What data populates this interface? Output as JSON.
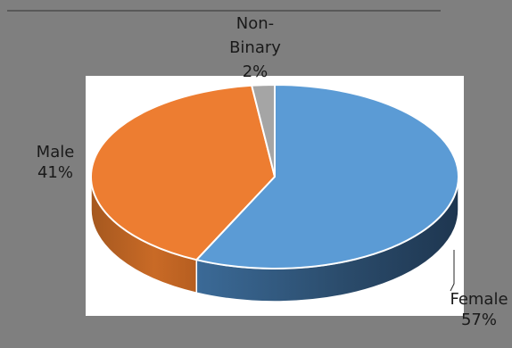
{
  "chart_data": {
    "type": "pie",
    "title": "",
    "categories": [
      "Female",
      "Male",
      "Non-Binary"
    ],
    "values": [
      57,
      41,
      2
    ],
    "value_labels": [
      "57%",
      "41%",
      "2%"
    ],
    "label_lines": [
      [
        "Female",
        "57%"
      ],
      [
        "Male",
        "41%"
      ],
      [
        "Non-",
        "Binary",
        "2%"
      ]
    ],
    "colors": {
      "Female": "#5B9BD5",
      "Male": "#ED7D31",
      "Non-Binary": "#A5A5A5",
      "frame": "#7F7F7F",
      "plot_area": "#FFFFFF"
    },
    "style": "3d-pie",
    "legend": "none"
  }
}
